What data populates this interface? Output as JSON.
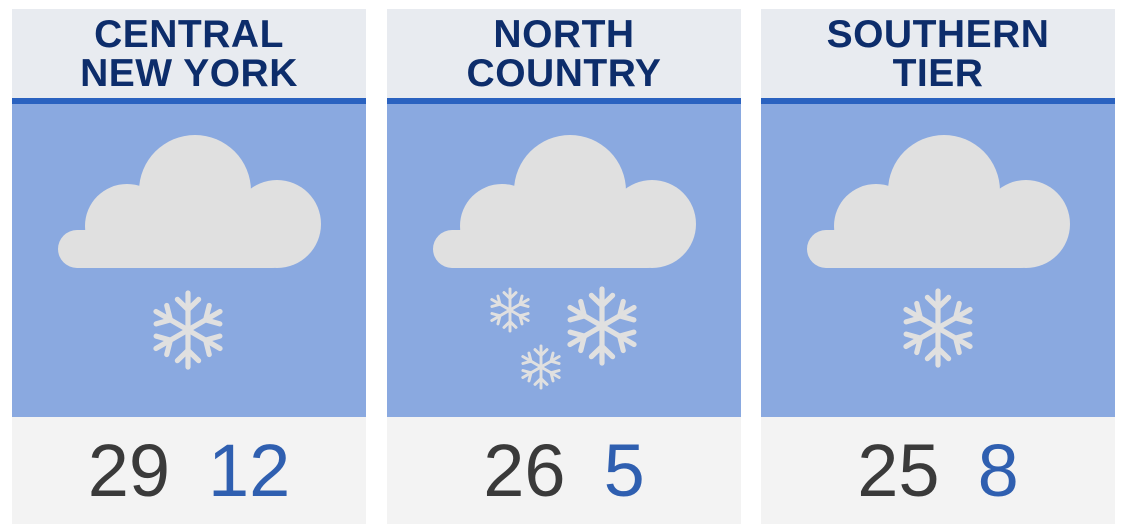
{
  "colors": {
    "header_bg": "#e8ebf0",
    "title": "#0d2d6b",
    "rule": "#2a62c0",
    "icon_bg": "#8aa9e0",
    "cloud": "#e0e0e0",
    "footer_bg": "#f3f3f3",
    "high": "#3a3a3a",
    "low": "#2f5fb0"
  },
  "regions": [
    {
      "title_line1": "CENTRAL",
      "title_line2": "NEW YORK",
      "icon": "cloud-snow-icon",
      "flakes": 1,
      "high": "29",
      "low": "12"
    },
    {
      "title_line1": "NORTH",
      "title_line2": "COUNTRY",
      "icon": "cloud-heavy-snow-icon",
      "flakes": 3,
      "high": "26",
      "low": "5"
    },
    {
      "title_line1": "SOUTHERN",
      "title_line2": "TIER",
      "icon": "cloud-snow-icon",
      "flakes": 1,
      "high": "25",
      "low": "8"
    }
  ]
}
